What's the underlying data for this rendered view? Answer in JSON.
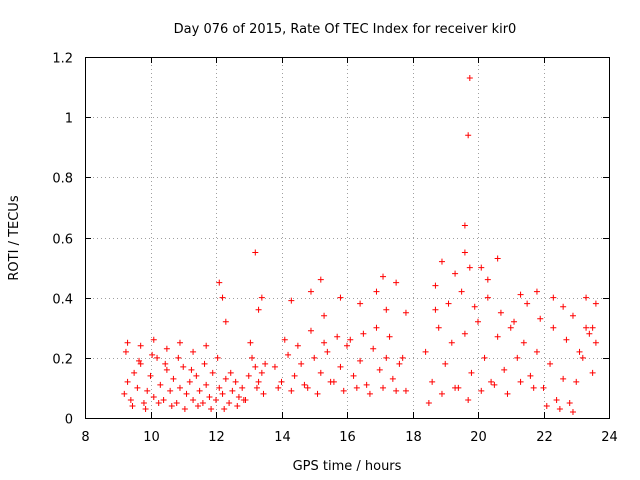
{
  "chart_data": {
    "type": "scatter",
    "title": "Day 076 of 2015, Rate Of TEC Index for receiver kir0",
    "xlabel": "GPS time / hours",
    "ylabel": "ROTI / TECUs",
    "xlim": [
      8,
      24
    ],
    "ylim": [
      0,
      1.2
    ],
    "grid": true,
    "marker": "+",
    "color": "#ff0000",
    "x_ticks": [
      "8",
      "10",
      "12",
      "14",
      "16",
      "18",
      "20",
      "22",
      "24"
    ],
    "y_ticks": [
      "0",
      "0.2",
      "0.4",
      "0.6",
      "0.8",
      "1",
      "1.2"
    ],
    "series": [
      {
        "name": "ROTI",
        "x": [
          9.2,
          9.3,
          9.4,
          9.5,
          9.6,
          9.7,
          9.8,
          9.9,
          10.0,
          10.1,
          10.2,
          10.3,
          10.4,
          10.5,
          10.6,
          10.7,
          10.8,
          10.9,
          11.0,
          11.1,
          11.2,
          11.3,
          11.4,
          11.5,
          11.6,
          11.7,
          11.8,
          11.9,
          12.0,
          12.1,
          12.2,
          12.3,
          12.4,
          12.5,
          12.6,
          12.7,
          12.8,
          12.9,
          13.0,
          13.1,
          13.2,
          13.3,
          13.4,
          13.5,
          9.25,
          9.45,
          9.65,
          9.85,
          10.05,
          10.25,
          10.45,
          10.65,
          10.85,
          11.05,
          11.25,
          11.45,
          11.65,
          11.85,
          12.05,
          12.25,
          12.45,
          12.65,
          12.85,
          13.05,
          13.25,
          13.45,
          9.3,
          9.7,
          10.1,
          10.5,
          10.9,
          11.3,
          11.7,
          12.1,
          12.2,
          12.3,
          13.2,
          13.3,
          13.4,
          13.8,
          14.0,
          14.2,
          14.4,
          14.6,
          14.8,
          15.0,
          15.2,
          15.4,
          15.6,
          15.8,
          16.0,
          16.2,
          16.4,
          16.6,
          16.8,
          17.0,
          17.2,
          17.4,
          17.6,
          17.8,
          13.9,
          14.1,
          14.3,
          14.5,
          14.7,
          14.9,
          15.1,
          15.3,
          15.5,
          15.7,
          15.9,
          16.1,
          16.3,
          16.5,
          16.7,
          16.9,
          17.1,
          17.3,
          17.5,
          17.7,
          14.3,
          14.9,
          15.2,
          15.3,
          15.8,
          16.4,
          16.9,
          17.1,
          17.2,
          17.5,
          17.8,
          18.4,
          18.6,
          18.8,
          19.0,
          19.2,
          19.4,
          19.6,
          19.8,
          20.0,
          20.2,
          20.4,
          20.6,
          20.8,
          21.0,
          21.2,
          21.4,
          21.6,
          21.8,
          22.0,
          22.2,
          22.4,
          22.6,
          22.8,
          23.0,
          23.2,
          23.4,
          23.6,
          18.5,
          18.7,
          18.9,
          19.1,
          19.3,
          19.5,
          19.7,
          19.9,
          20.1,
          20.3,
          20.5,
          20.7,
          20.9,
          21.1,
          21.3,
          21.5,
          21.7,
          21.9,
          22.1,
          22.3,
          22.5,
          22.7,
          22.9,
          23.1,
          23.3,
          23.5,
          18.7,
          18.9,
          19.3,
          19.6,
          19.6,
          19.7,
          19.75,
          19.75,
          20.1,
          20.3,
          20.6,
          21.3,
          21.8,
          22.3,
          22.6,
          22.9,
          23.3,
          23.6,
          23.5
        ],
        "y": [
          0.08,
          0.12,
          0.06,
          0.15,
          0.1,
          0.18,
          0.05,
          0.09,
          0.14,
          0.07,
          0.2,
          0.11,
          0.06,
          0.16,
          0.09,
          0.13,
          0.05,
          0.1,
          0.17,
          0.08,
          0.12,
          0.06,
          0.14,
          0.09,
          0.05,
          0.11,
          0.07,
          0.15,
          0.06,
          0.1,
          0.08,
          0.13,
          0.05,
          0.09,
          0.12,
          0.07,
          0.1,
          0.06,
          0.14,
          0.2,
          0.17,
          0.12,
          0.15,
          0.18,
          0.22,
          0.04,
          0.19,
          0.03,
          0.21,
          0.05,
          0.18,
          0.04,
          0.2,
          0.03,
          0.16,
          0.04,
          0.18,
          0.03,
          0.2,
          0.03,
          0.15,
          0.04,
          0.06,
          0.25,
          0.1,
          0.08,
          0.25,
          0.24,
          0.26,
          0.23,
          0.25,
          0.22,
          0.24,
          0.45,
          0.4,
          0.32,
          0.55,
          0.36,
          0.4,
          0.17,
          0.12,
          0.21,
          0.14,
          0.18,
          0.1,
          0.2,
          0.15,
          0.22,
          0.12,
          0.17,
          0.24,
          0.14,
          0.19,
          0.11,
          0.23,
          0.16,
          0.2,
          0.13,
          0.18,
          0.09,
          0.1,
          0.26,
          0.09,
          0.24,
          0.11,
          0.29,
          0.08,
          0.25,
          0.12,
          0.27,
          0.09,
          0.26,
          0.1,
          0.28,
          0.08,
          0.3,
          0.1,
          0.27,
          0.09,
          0.2,
          0.39,
          0.42,
          0.46,
          0.34,
          0.4,
          0.38,
          0.42,
          0.47,
          0.36,
          0.45,
          0.35,
          0.22,
          0.12,
          0.3,
          0.18,
          0.25,
          0.1,
          0.28,
          0.15,
          0.32,
          0.2,
          0.12,
          0.27,
          0.16,
          0.3,
          0.2,
          0.25,
          0.14,
          0.22,
          0.1,
          0.18,
          0.06,
          0.13,
          0.05,
          0.12,
          0.2,
          0.28,
          0.25,
          0.05,
          0.36,
          0.08,
          0.38,
          0.1,
          0.42,
          0.06,
          0.37,
          0.09,
          0.4,
          0.11,
          0.35,
          0.08,
          0.32,
          0.12,
          0.38,
          0.1,
          0.33,
          0.04,
          0.3,
          0.03,
          0.26,
          0.02,
          0.22,
          0.3,
          0.15,
          0.44,
          0.52,
          0.48,
          0.64,
          0.55,
          0.94,
          1.13,
          0.5,
          0.5,
          0.46,
          0.53,
          0.41,
          0.42,
          0.4,
          0.37,
          0.34,
          0.4,
          0.38,
          0.3
        ]
      }
    ]
  }
}
